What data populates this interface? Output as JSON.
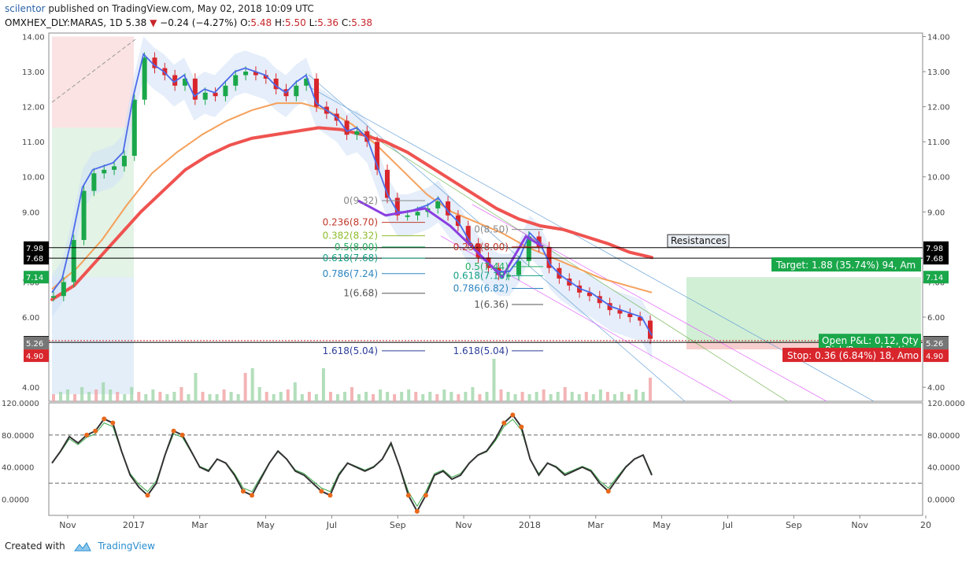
{
  "header": {
    "author": "scilentor",
    "published": " published on TradingView.com, May 02, 2018 10:09 UTC",
    "symbol": "OMXHEX_DLY:MARAS, 1D",
    "last": "5.38",
    "arrow": "▼",
    "change": "−0.24 (−4.27%)",
    "o_label": "O:",
    "o_value": "5.48",
    "h_label": "H:",
    "h_value": "5.50",
    "l_label": "L:",
    "l_value": "5.36",
    "c_label": "C:",
    "c_value": "5.38"
  },
  "footer": {
    "created_with": "Created with",
    "brand": "TradingView"
  },
  "colors": {
    "up": "#1aa74a",
    "down": "#d8262c",
    "ma200": "#ef5350",
    "ma50": "#f5a05a",
    "ma20": "#4c6bea",
    "zigzag": "#8a3fe0",
    "stoch_k": "#333333",
    "axis": "#444444"
  },
  "chart_data": [
    {
      "type": "line",
      "name": "price",
      "x_ticks": [
        "Nov",
        "2017",
        "Mar",
        "May",
        "Jul",
        "Sep",
        "Nov",
        "2018",
        "Mar",
        "May",
        "Jul",
        "Sep",
        "Nov",
        "20"
      ],
      "ylim": [
        3.6,
        14.1
      ],
      "y_ticks": [
        "14.00",
        "13.00",
        "12.00",
        "11.00",
        "10.00",
        "9.00",
        "7.00",
        "6.00",
        "4.00"
      ],
      "price_points": [
        6.6,
        7.0,
        8.2,
        9.6,
        10.1,
        10.2,
        10.3,
        10.6,
        12.2,
        13.4,
        13.1,
        12.9,
        12.6,
        12.8,
        12.2,
        12.4,
        12.3,
        12.6,
        12.9,
        13.0,
        12.9,
        12.8,
        12.5,
        12.3,
        12.6,
        12.8,
        12.0,
        11.8,
        11.6,
        11.2,
        11.3,
        11.0,
        10.2,
        9.4,
        8.9,
        8.9,
        9.0,
        9.1,
        9.3,
        8.9,
        8.6,
        8.1,
        7.7,
        7.4,
        7.2,
        7.2,
        7.6,
        8.3,
        8.0,
        7.4,
        7.1,
        6.9,
        6.7,
        6.6,
        6.4,
        6.2,
        6.1,
        6.0,
        5.9,
        5.38
      ],
      "ma200": [
        6.5,
        6.9,
        7.6,
        8.3,
        9.0,
        9.6,
        10.2,
        10.6,
        10.9,
        11.1,
        11.2,
        11.3,
        11.4,
        11.35,
        11.2,
        11.0,
        10.7,
        10.3,
        9.9,
        9.5,
        9.1,
        8.8,
        8.6,
        8.5,
        8.3,
        8.1,
        7.85,
        7.7
      ],
      "ma50": [
        6.8,
        7.4,
        8.2,
        9.2,
        10.1,
        10.7,
        11.2,
        11.6,
        11.9,
        12.1,
        12.1,
        11.9,
        11.5,
        10.9,
        10.2,
        9.5,
        9.0,
        8.7,
        8.4,
        8.0,
        7.7,
        7.4,
        7.1,
        6.9,
        6.7
      ],
      "fib_left": [
        {
          "label": "0(9.32)",
          "value": 9.32
        },
        {
          "label": "0.236(8.70)",
          "value": 8.7
        },
        {
          "label": "0.382(8.32)",
          "value": 8.32
        },
        {
          "label": "0.5(8.00)",
          "value": 8.0
        },
        {
          "label": "0.618(7.68)",
          "value": 7.68
        },
        {
          "label": "0.786(7.24)",
          "value": 7.24
        },
        {
          "label": "1(6.68)",
          "value": 6.68
        },
        {
          "label": "1.618(5.04)",
          "value": 5.04
        }
      ],
      "fib_right": [
        {
          "label": "0(8.50)",
          "value": 8.5
        },
        {
          "label": "0.236(8.00)",
          "value": 8.0
        },
        {
          "label": "0.5(7.44)",
          "value": 7.44
        },
        {
          "label": "0.618(7.18)",
          "value": 7.18
        },
        {
          "label": "0.786(6.82)",
          "value": 6.82
        },
        {
          "label": "1(6.36)",
          "value": 6.36
        },
        {
          "label": "1.618(5.04)",
          "value": 5.04
        }
      ],
      "h_lines": [
        {
          "value": 7.98,
          "label": "7.98"
        },
        {
          "value": 7.68,
          "label": "7.68"
        },
        {
          "value": 5.28,
          "label": "5.28"
        }
      ],
      "price_labels": [
        {
          "value": 7.98,
          "text": "7.98",
          "bg": "#000000"
        },
        {
          "value": 7.68,
          "text": "7.68",
          "bg": "#000000"
        },
        {
          "value": 7.14,
          "text": "7.14",
          "bg": "#1aa74a"
        },
        {
          "value": 5.28,
          "text": "5.28",
          "bg": "#000000"
        },
        {
          "value": 5.26,
          "text": "5.26",
          "bg": "#777777"
        },
        {
          "value": 4.9,
          "text": "4.90",
          "bg": "#d8262c"
        }
      ],
      "annotations": {
        "resistances": "Resistances",
        "target": "Target: 1.88 (35.74%) 94, Am",
        "open_pl": "Open P&L: 0.12, Qty",
        "risk_reward": "Risk/Reward Ratio:",
        "stop": "Stop: 0.36 (6.84%) 18, Amo"
      },
      "volume": [
        3,
        4,
        5,
        3,
        6,
        4,
        5,
        8,
        5,
        4,
        3,
        6,
        4,
        3,
        5,
        4,
        3,
        4,
        6,
        3,
        12,
        4,
        3,
        3,
        5,
        4,
        3,
        12,
        14,
        6,
        4,
        3,
        4,
        5,
        8,
        3,
        4,
        3,
        14,
        4,
        3,
        4,
        6,
        3,
        4,
        3,
        5,
        4,
        3,
        4,
        5,
        4,
        3,
        4,
        3,
        5,
        4,
        3,
        4,
        6,
        3,
        4,
        18,
        5,
        4,
        3,
        4,
        3,
        4,
        5,
        3,
        4,
        6,
        4,
        3,
        4,
        3,
        5,
        4,
        3,
        4,
        3,
        5,
        4,
        10
      ]
    },
    {
      "type": "line",
      "name": "stochastic_rsi",
      "ylim": [
        -20,
        120
      ],
      "y_ticks": [
        "120.0000",
        "80.0000",
        "40.0000",
        "0.0000"
      ],
      "overbought": 80,
      "oversold": 20,
      "k": [
        45,
        60,
        78,
        70,
        80,
        85,
        100,
        95,
        60,
        30,
        15,
        5,
        20,
        55,
        85,
        80,
        60,
        40,
        35,
        50,
        45,
        30,
        10,
        5,
        25,
        45,
        60,
        50,
        35,
        30,
        20,
        10,
        5,
        30,
        45,
        40,
        35,
        40,
        50,
        70,
        40,
        5,
        -15,
        5,
        30,
        35,
        25,
        30,
        45,
        55,
        60,
        75,
        95,
        105,
        90,
        50,
        30,
        45,
        40,
        30,
        35,
        40,
        35,
        20,
        10,
        25,
        40,
        50,
        55,
        30
      ]
    }
  ]
}
